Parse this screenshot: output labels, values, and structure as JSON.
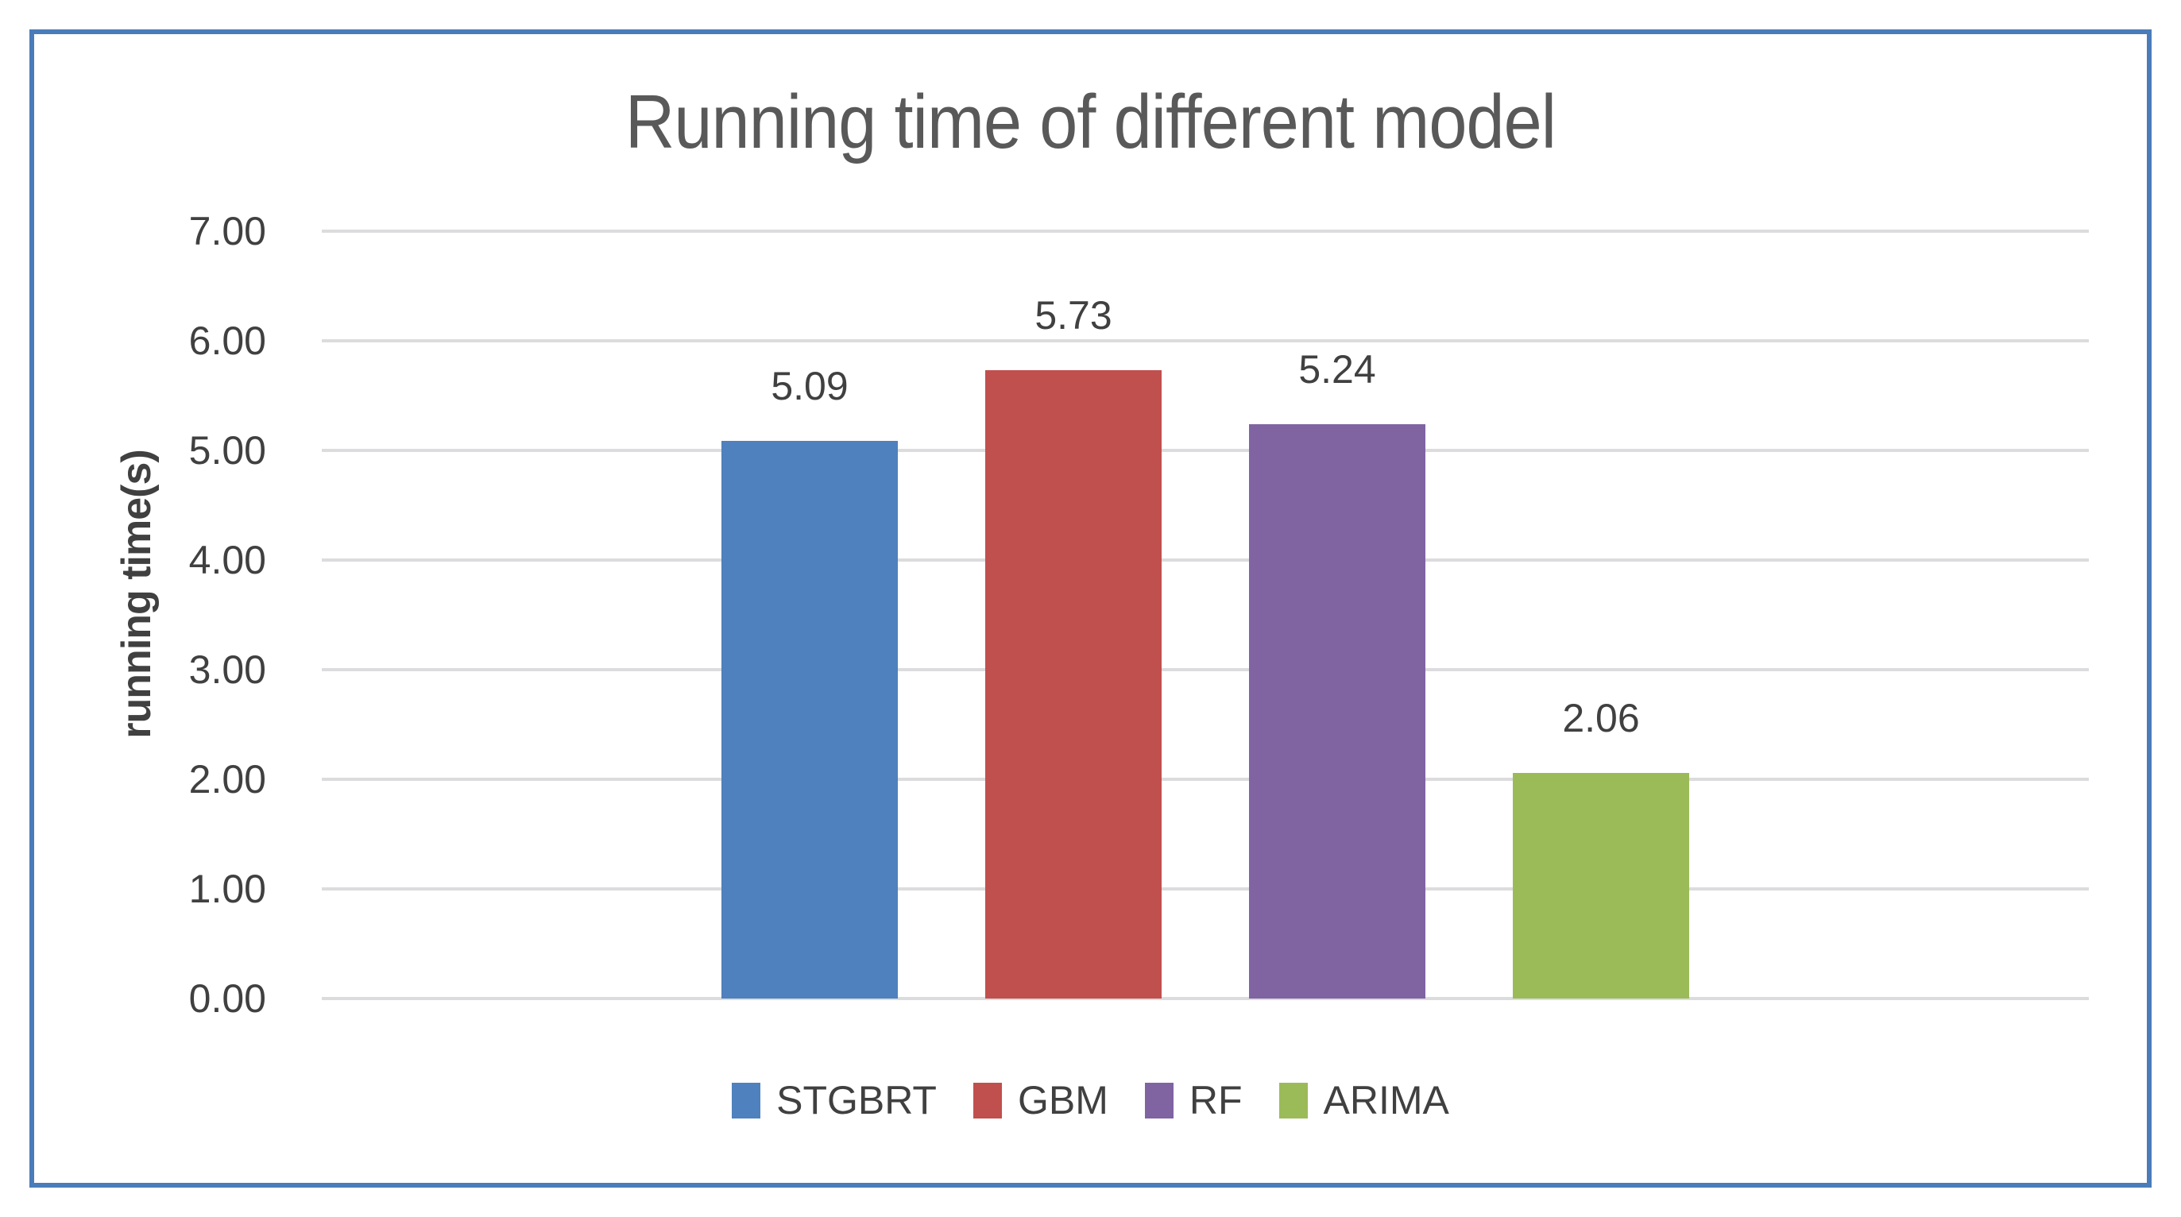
{
  "chart": {
    "title": "Running time of different model",
    "ylabel": "running time(s)"
  },
  "frame": {
    "border_color": "#4A7CBA"
  },
  "chart_data": {
    "type": "bar",
    "title": "Running time of different model",
    "xlabel": "",
    "ylabel": "running time(s)",
    "series": [
      {
        "name": "STGBRT",
        "value": 5.09,
        "label": "5.09",
        "color": "#4E81BD"
      },
      {
        "name": "GBM",
        "value": 5.73,
        "label": "5.73",
        "color": "#C0504D"
      },
      {
        "name": "RF",
        "value": 5.24,
        "label": "5.24",
        "color": "#8064A2"
      },
      {
        "name": "ARIMA",
        "value": 2.06,
        "label": "2.06",
        "color": "#9BBB59"
      }
    ],
    "ylim": [
      0,
      7
    ],
    "yticks": [
      "7.00",
      "6.00",
      "5.00",
      "4.00",
      "3.00",
      "2.00",
      "1.00",
      "0.00"
    ],
    "grid": true,
    "gridline_color": "#DCDCDE",
    "legend_position": "bottom",
    "data_labels": true
  }
}
